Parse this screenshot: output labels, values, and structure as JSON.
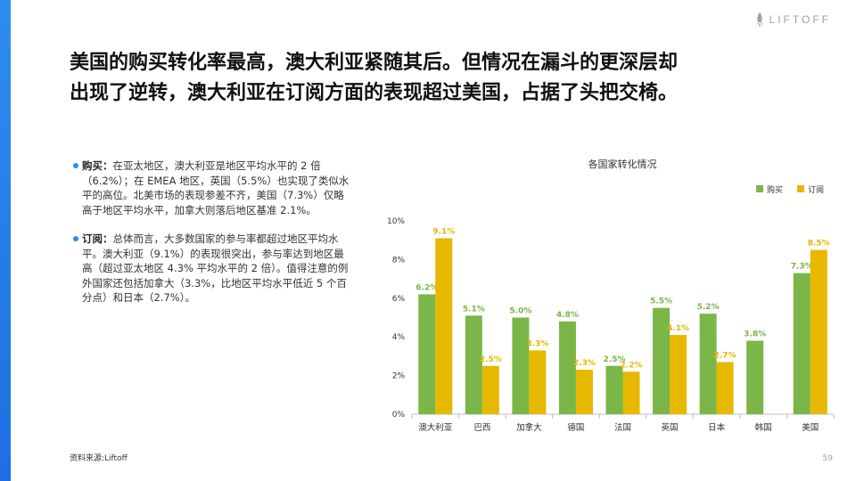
{
  "brand": {
    "name": "LIFTOFF",
    "accent": "#2a8de8"
  },
  "headline": {
    "line1": "美国的购买转化率最高，澳大利亚紧随其后。但情况在漏斗的更深层却",
    "line2": "出现了逆转，澳大利亚在订阅方面的表现超过美国，占据了头把交椅。"
  },
  "bullets": [
    {
      "term": "购买：",
      "text": "在亚太地区，澳大利亚是地区平均水平的 2 倍（6.2%）；在 EMEA 地区，英国（5.5%）也实现了类似水平的高位。北美市场的表现参差不齐，美国（7.3%）仅略高于地区平均水平，加拿大则落后地区基准 2.1%。"
    },
    {
      "term": "订阅：",
      "text": "总体而言，大多数国家的参与率都超过地区平均水平。澳大利亚（9.1%）的表现很突出，参与率达到地区最高（超过亚太地区 4.3% 平均水平的 2 倍）。值得注意的例外国家还包括加拿大（3.3%，比地区平均水平低近 5 个百分点）和日本（2.7%）。"
    }
  ],
  "source": "资料来源:Liftoff",
  "page_number": "59",
  "chart_data": {
    "type": "bar",
    "title": "各国家转化情况",
    "categories": [
      "澳大利亚",
      "巴西",
      "加拿大",
      "德国",
      "法国",
      "英国",
      "日本",
      "韩国",
      "美国"
    ],
    "series": [
      {
        "name": "购买",
        "color": "#7ab648",
        "values": [
          6.2,
          5.1,
          5.0,
          4.8,
          2.5,
          5.5,
          5.2,
          3.8,
          7.3
        ],
        "labels": [
          "6.2%",
          "5.1%",
          "5.0%",
          "4.8%",
          "2.5%",
          "5.5%",
          "5.2%",
          "3.8%",
          "7.3%"
        ]
      },
      {
        "name": "订阅",
        "color": "#e6b800",
        "values": [
          9.1,
          2.5,
          3.3,
          2.3,
          2.2,
          4.1,
          2.7,
          null,
          8.5
        ],
        "labels": [
          "9.1%",
          "2.5%",
          "3.3%",
          "2.3%",
          "2.2%",
          "4.1%",
          "2.7%",
          "",
          "8.5%"
        ]
      }
    ],
    "yticks": [
      "0%",
      "2%",
      "4%",
      "6%",
      "8%",
      "10%"
    ],
    "ylim": [
      0,
      10
    ],
    "legend_position": "top-right",
    "grid": false
  }
}
